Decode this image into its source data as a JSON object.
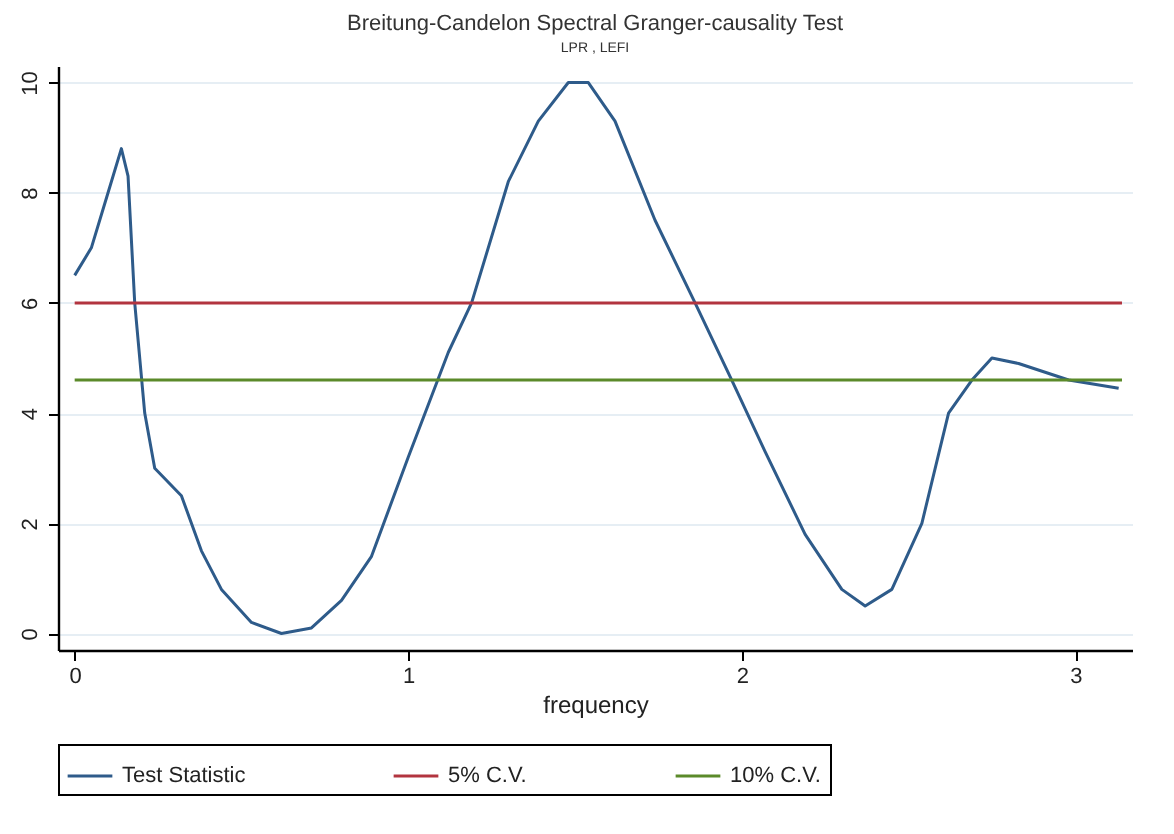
{
  "chart_data": {
    "type": "line",
    "title": "Breitung-Candelon Spectral Granger-causality Test",
    "subtitle": "LPR , LEFI",
    "xlabel": "frequency",
    "xlim": [
      -0.05,
      3.17
    ],
    "xticks": [
      0,
      1,
      2,
      3
    ],
    "ylim": [
      -0.3,
      10.3
    ],
    "yticks": [
      0,
      2,
      4,
      6,
      8,
      10
    ],
    "grid": "y",
    "legend": "bottom",
    "series": [
      {
        "name": "Test Statistic",
        "color": "#2e5b8a",
        "x": [
          0,
          0.05,
          0.1,
          0.14,
          0.16,
          0.18,
          0.21,
          0.24,
          0.32,
          0.38,
          0.44,
          0.53,
          0.62,
          0.71,
          0.8,
          0.89,
          1.0,
          1.12,
          1.19,
          1.3,
          1.39,
          1.48,
          1.54,
          1.62,
          1.74,
          1.86,
          1.97,
          2.07,
          2.19,
          2.3,
          2.37,
          2.45,
          2.54,
          2.62,
          2.69,
          2.75,
          2.83,
          2.98,
          3.13
        ],
        "values": [
          6.5,
          7.0,
          8.0,
          8.8,
          8.3,
          6.0,
          4.0,
          3.0,
          2.5,
          1.5,
          0.8,
          0.2,
          0,
          0.1,
          0.6,
          1.4,
          3.2,
          5.1,
          6.0,
          8.2,
          9.3,
          10.0,
          10.0,
          9.3,
          7.5,
          6.0,
          4.6,
          3.3,
          1.8,
          0.8,
          0.5,
          0.8,
          2.0,
          4.0,
          4.6,
          5.0,
          4.9,
          4.6,
          4.45
        ]
      },
      {
        "name": "5% C.V.",
        "color": "#b2343f",
        "x": [
          0,
          3.14
        ],
        "values": [
          6,
          6
        ]
      },
      {
        "name": "10% C.V.",
        "color": "#5b8a2a",
        "x": [
          0,
          3.14
        ],
        "values": [
          4.6,
          4.6
        ]
      }
    ]
  }
}
